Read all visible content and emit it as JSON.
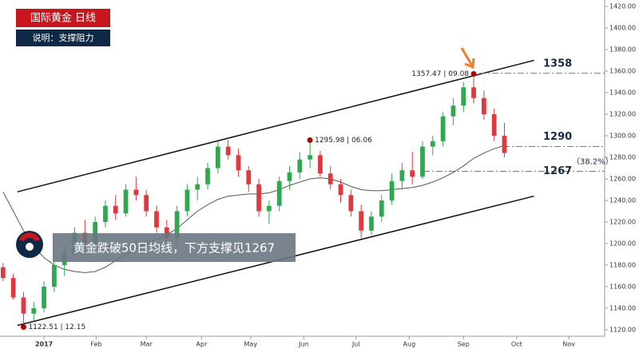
{
  "chart_data": {
    "type": "candlestick",
    "title": "国际黄金  日线",
    "subtitle": "说明：支撑阻力",
    "caption": "黄金跌破50日均线，下方支撑见1267",
    "xlim": [
      -0.3,
      58.8
    ],
    "xticks": [
      {
        "value": 4,
        "label": "2017"
      },
      {
        "value": 9.1,
        "label": "Feb"
      },
      {
        "value": 14,
        "label": "Mar"
      },
      {
        "value": 19.4,
        "label": "Apr"
      },
      {
        "value": 24.2,
        "label": "May"
      },
      {
        "value": 29.4,
        "label": "Jun"
      },
      {
        "value": 34.5,
        "label": "Jul"
      },
      {
        "value": 39.7,
        "label": "Aug"
      },
      {
        "value": 45,
        "label": "Sep"
      },
      {
        "value": 50.2,
        "label": "Oct"
      },
      {
        "value": 55.3,
        "label": "Nov"
      }
    ],
    "ylim": [
      1114,
      1426
    ],
    "yticks": [
      {
        "value": 1120,
        "label": "1120.00"
      },
      {
        "value": 1140,
        "label": "1140.00"
      },
      {
        "value": 1160,
        "label": "1160.00"
      },
      {
        "value": 1180,
        "label": "1180.00"
      },
      {
        "value": 1200,
        "label": "1200.00"
      },
      {
        "value": 1220,
        "label": "1220.00"
      },
      {
        "value": 1240,
        "label": "1240.00"
      },
      {
        "value": 1260,
        "label": "1260.00"
      },
      {
        "value": 1280,
        "label": "1280.00"
      },
      {
        "value": 1300,
        "label": "1300.00"
      },
      {
        "value": 1320,
        "label": "1320.00"
      },
      {
        "value": 1340,
        "label": "1340.00"
      },
      {
        "value": 1360,
        "label": "1360.00"
      },
      {
        "value": 1380,
        "label": "1380.00"
      },
      {
        "value": 1400,
        "label": "1400.00"
      },
      {
        "value": 1420,
        "label": "1420.00"
      }
    ],
    "up_color": "#2fa84f",
    "down_color": "#e0383e",
    "ma_color": "#555555",
    "candles": [
      [
        1178,
        1182,
        1165,
        1168
      ],
      [
        1168,
        1172,
        1148,
        1150
      ],
      [
        1150,
        1155,
        1122.51,
        1135
      ],
      [
        1135,
        1146,
        1128,
        1140
      ],
      [
        1140,
        1165,
        1136,
        1160
      ],
      [
        1160,
        1185,
        1155,
        1180
      ],
      [
        1180,
        1198,
        1170,
        1190
      ],
      [
        1190,
        1215,
        1185,
        1210
      ],
      [
        1210,
        1222,
        1195,
        1200
      ],
      [
        1200,
        1225,
        1198,
        1220
      ],
      [
        1220,
        1240,
        1215,
        1235
      ],
      [
        1235,
        1245,
        1222,
        1228
      ],
      [
        1228,
        1255,
        1225,
        1250
      ],
      [
        1250,
        1262,
        1240,
        1245
      ],
      [
        1245,
        1250,
        1225,
        1230
      ],
      [
        1230,
        1235,
        1210,
        1215
      ],
      [
        1215,
        1222,
        1198,
        1205
      ],
      [
        1205,
        1235,
        1200,
        1230
      ],
      [
        1230,
        1255,
        1225,
        1250
      ],
      [
        1250,
        1262,
        1240,
        1255
      ],
      [
        1255,
        1275,
        1250,
        1270
      ],
      [
        1270,
        1295,
        1265,
        1290
      ],
      [
        1290,
        1296,
        1278,
        1282
      ],
      [
        1282,
        1288,
        1262,
        1268
      ],
      [
        1268,
        1272,
        1248,
        1255
      ],
      [
        1255,
        1260,
        1225,
        1230
      ],
      [
        1230,
        1240,
        1218,
        1235
      ],
      [
        1235,
        1262,
        1230,
        1258
      ],
      [
        1258,
        1272,
        1250,
        1266
      ],
      [
        1266,
        1285,
        1260,
        1278
      ],
      [
        1278,
        1295.98,
        1270,
        1282
      ],
      [
        1282,
        1286,
        1262,
        1265
      ],
      [
        1265,
        1272,
        1250,
        1255
      ],
      [
        1255,
        1260,
        1238,
        1245
      ],
      [
        1245,
        1250,
        1225,
        1230
      ],
      [
        1230,
        1236,
        1205,
        1212
      ],
      [
        1212,
        1230,
        1208,
        1225
      ],
      [
        1225,
        1245,
        1220,
        1240
      ],
      [
        1240,
        1265,
        1236,
        1258
      ],
      [
        1258,
        1275,
        1250,
        1268
      ],
      [
        1268,
        1285,
        1255,
        1262
      ],
      [
        1262,
        1295,
        1260,
        1290
      ],
      [
        1290,
        1300,
        1282,
        1295
      ],
      [
        1295,
        1322,
        1290,
        1318
      ],
      [
        1318,
        1335,
        1310,
        1328
      ],
      [
        1328,
        1350,
        1322,
        1345
      ],
      [
        1345,
        1357.47,
        1330,
        1335
      ],
      [
        1335,
        1342,
        1315,
        1320
      ],
      [
        1320,
        1325,
        1295,
        1300
      ],
      [
        1300,
        1312,
        1280,
        1284
      ]
    ],
    "ma50": [
      1248,
      1230,
      1212,
      1197,
      1187,
      1180,
      1176,
      1174,
      1173,
      1174,
      1178,
      1184,
      1190,
      1195,
      1200,
      1204,
      1208,
      1214,
      1222,
      1230,
      1236,
      1241,
      1244,
      1245,
      1246,
      1246,
      1247,
      1250,
      1254,
      1257,
      1260,
      1261,
      1260,
      1257,
      1253,
      1250,
      1249,
      1249,
      1250,
      1251,
      1252,
      1254,
      1257,
      1261,
      1266,
      1272,
      1279,
      1284,
      1288,
      1291
    ],
    "channel": {
      "upper": [
        1248,
        1370
      ],
      "lower": [
        1124,
        1244
      ]
    },
    "annotations": [
      {
        "price": 1357.47,
        "label": "1357.47 | 09.08"
      },
      {
        "price": 1295.98,
        "label": "1295.98 | 06.06"
      },
      {
        "price": 1122.51,
        "label": "1122.51 | 12.15"
      }
    ],
    "levels": [
      {
        "value": 1358
      },
      {
        "value": 1290
      },
      {
        "value": 1267,
        "note": "（38.2%）"
      }
    ]
  }
}
